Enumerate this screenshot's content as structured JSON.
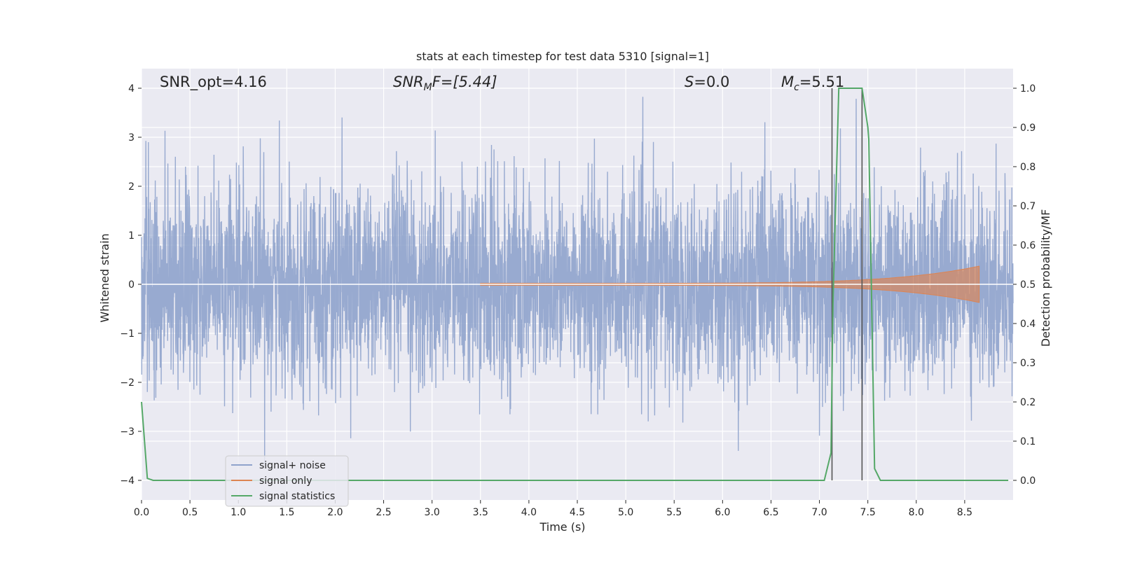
{
  "chart_data": {
    "type": "line",
    "title": "stats at each timestep for test data 5310 [signal=1]",
    "xlabel": "Time (s)",
    "ylabel_left": "Whitened strain",
    "ylabel_right": "Detection probability/MF",
    "xlim": [
      0,
      9.0
    ],
    "ylim_left": [
      -4.4,
      4.4
    ],
    "ylim_right": [
      -0.05,
      1.05
    ],
    "x_ticks": [
      "0.0",
      "0.5",
      "1.0",
      "1.5",
      "2.0",
      "2.5",
      "3.0",
      "3.5",
      "4.0",
      "4.5",
      "5.0",
      "5.5",
      "6.0",
      "6.5",
      "7.0",
      "7.5",
      "8.0",
      "8.5"
    ],
    "x_tick_values": [
      0.0,
      0.5,
      1.0,
      1.5,
      2.0,
      2.5,
      3.0,
      3.5,
      4.0,
      4.5,
      5.0,
      5.5,
      6.0,
      6.5,
      7.0,
      7.5,
      8.0,
      8.5
    ],
    "y_ticks_left": [
      "−4",
      "−3",
      "−2",
      "−1",
      "0",
      "1",
      "2",
      "3",
      "4"
    ],
    "y_tick_values_left": [
      -4,
      -3,
      -2,
      -1,
      0,
      1,
      2,
      3,
      4
    ],
    "y_ticks_right": [
      "0.0",
      "0.1",
      "0.2",
      "0.3",
      "0.4",
      "0.5",
      "0.6",
      "0.7",
      "0.8",
      "0.9",
      "1.0"
    ],
    "y_tick_values_right": [
      0.0,
      0.1,
      0.2,
      0.3,
      0.4,
      0.5,
      0.6,
      0.7,
      0.8,
      0.9,
      1.0
    ],
    "grid": true,
    "legend_position": "lower-left",
    "annotations": {
      "snr_opt": "SNR_opt=4.16",
      "snr_mf_main": "SNR",
      "snr_mf_sub": "M",
      "snr_mf_rest": "F=[5.44]",
      "s_main": "S",
      "s_rest": "=0.0",
      "mc_main": "M",
      "mc_sub": "c",
      "mc_rest": "=5.51"
    },
    "series": [
      {
        "name": "signal+ noise",
        "color": "#8fa3cc",
        "axis": "left",
        "kind": "noise",
        "amplitude_sigma": 1.0
      },
      {
        "name": "signal only",
        "color": "#dd8452",
        "axis": "left",
        "kind": "chirp",
        "start": 3.5,
        "end": 8.65,
        "peak_amplitude": 0.35
      },
      {
        "name": "signal statistics",
        "color": "#55a868",
        "axis": "right",
        "x": [
          0.0,
          0.06,
          0.12,
          0.2,
          7.05,
          7.12,
          7.14,
          7.2,
          7.44,
          7.5,
          7.51,
          7.57,
          7.63,
          7.7,
          8.95
        ],
        "y": [
          0.2,
          0.005,
          0.0,
          0.0,
          0.0,
          0.07,
          0.45,
          1.0,
          1.0,
          0.9,
          0.87,
          0.03,
          0.0,
          0.0,
          0.0
        ]
      }
    ],
    "vertical_markers": [
      7.13,
      7.44
    ],
    "colors": {
      "plot_bg": "#eaeaf2",
      "grid": "#ffffff",
      "marker": "#555555"
    }
  }
}
